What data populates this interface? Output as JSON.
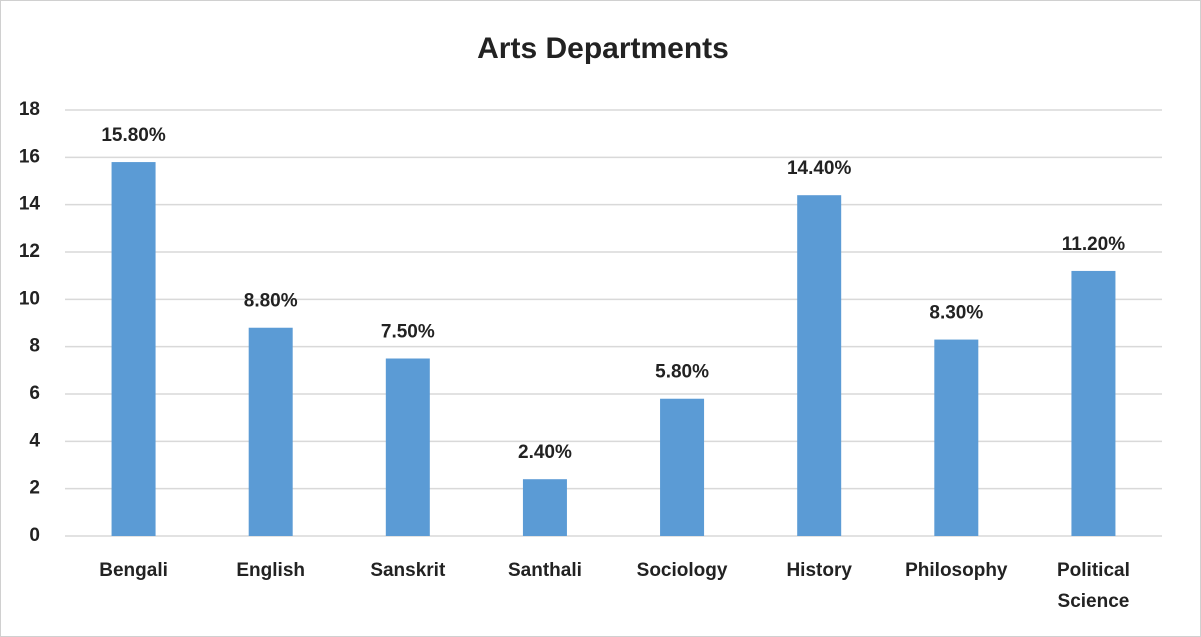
{
  "chart_data": {
    "type": "bar",
    "title": "Arts Departments",
    "categories": [
      "Bengali",
      "English",
      "Sanskrit",
      "Santhali",
      "Sociology",
      "History",
      "Philosophy",
      "Political Science"
    ],
    "values": [
      15.8,
      8.8,
      7.5,
      2.4,
      5.8,
      14.4,
      8.3,
      11.2
    ],
    "value_labels": [
      "15.80%",
      "8.80%",
      "7.50%",
      "2.40%",
      "5.80%",
      "14.40%",
      "8.30%",
      "11.20%"
    ],
    "color": "#5b9bd5",
    "ylim": [
      0,
      18
    ],
    "yticks": [
      0,
      2,
      4,
      6,
      8,
      10,
      12,
      14,
      16,
      18
    ],
    "grid": true
  }
}
